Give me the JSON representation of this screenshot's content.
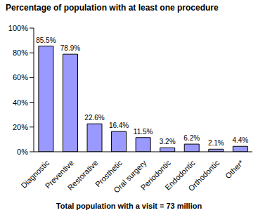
{
  "chart_data": {
    "type": "bar",
    "title": "Percentage of population with at least one procedure",
    "xlabel": "Total population with a visit = 73 million",
    "categories": [
      "Diagnostic",
      "Preventive",
      "Restorative",
      "Prosthetic",
      "Oral surgery",
      "Periodontic",
      "Endodontic",
      "Orthodontic",
      "Other*"
    ],
    "values": [
      85.5,
      78.9,
      22.6,
      16.4,
      11.5,
      3.2,
      6.2,
      2.1,
      4.4
    ],
    "value_labels": [
      "85.5%",
      "78.9%",
      "22.6%",
      "16.4%",
      "11.5%",
      "3.2%",
      "6.2%",
      "2.1%",
      "4.4%"
    ],
    "color": "#9999ff",
    "ylim": [
      0,
      100
    ],
    "yticks": [
      {
        "value": 0,
        "label": "0%"
      },
      {
        "value": 20,
        "label": "20%"
      },
      {
        "value": 40,
        "label": "40%"
      },
      {
        "value": 60,
        "label": "60%"
      },
      {
        "value": 80,
        "label": "80%"
      },
      {
        "value": 100,
        "label": "100%"
      }
    ],
    "grid": false,
    "data_labels": true
  }
}
